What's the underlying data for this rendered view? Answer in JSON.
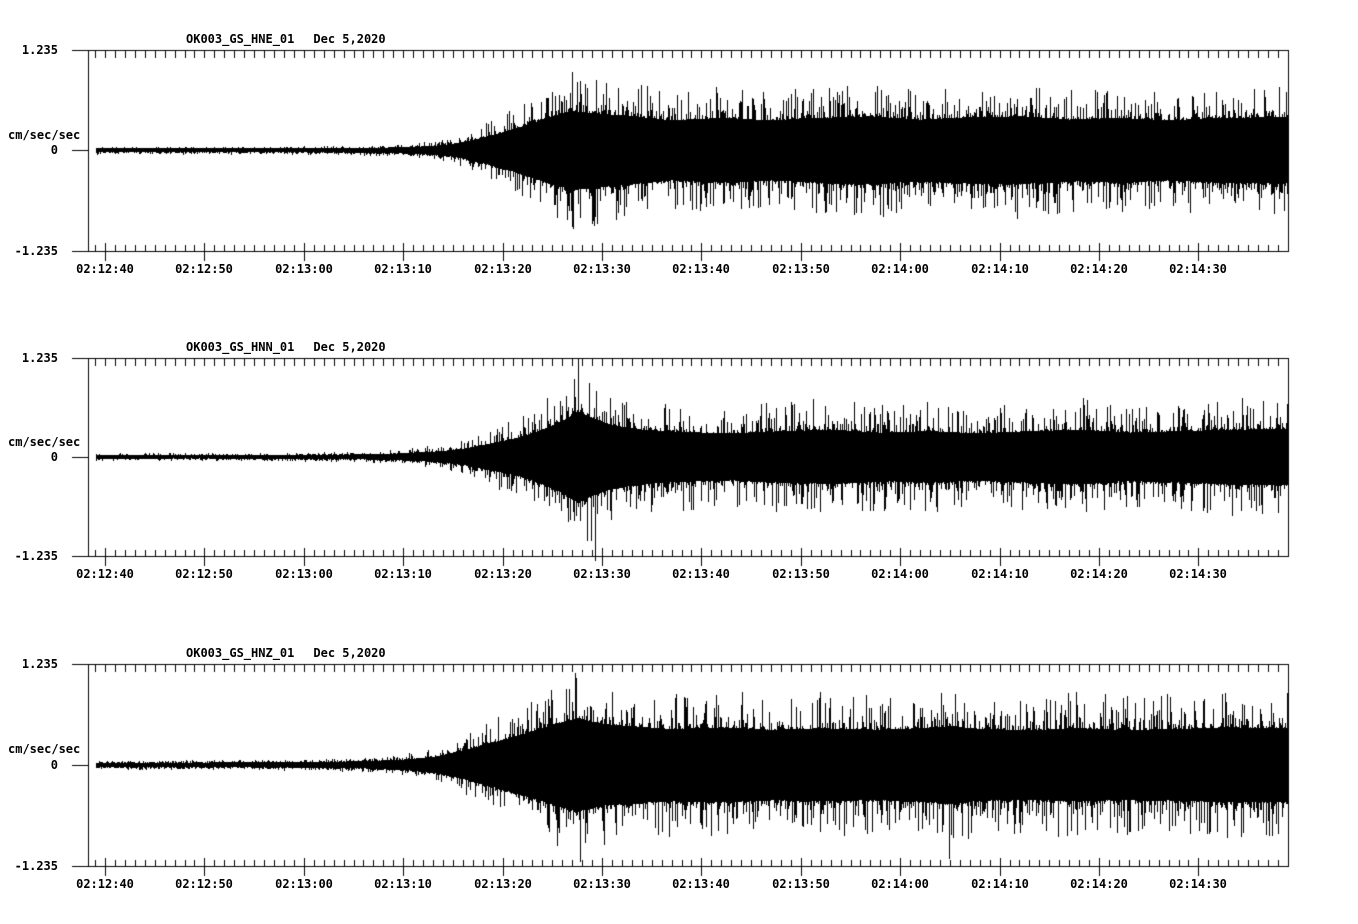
{
  "page": {
    "background": "#ffffff",
    "ink": "#000000"
  },
  "chart_data": [
    {
      "type": "line",
      "kind": "seismogram-trace",
      "title": "OK003_GS_HNE_01",
      "date": "Dec 5,2020",
      "ylabel": "cm/sec/sec",
      "xlabel": "",
      "ylim": [
        -1.235,
        1.235
      ],
      "y_tick_labels": [
        "1.235",
        "0",
        "-1.235"
      ],
      "x_tick_labels": [
        "02:12:40",
        "02:12:50",
        "02:13:00",
        "02:13:10",
        "02:13:20",
        "02:13:30",
        "02:13:40",
        "02:13:50",
        "02:14:00",
        "02:14:10",
        "02:14:20",
        "02:14:30"
      ],
      "x_major_interval_s": 10,
      "x_minor_interval_s": 1,
      "envelope": {
        "t_s": [
          -2,
          10,
          20,
          26,
          30,
          33,
          35,
          37,
          39,
          41,
          43,
          45,
          47,
          50,
          53,
          57,
          62,
          67,
          72,
          77,
          82,
          87,
          92,
          97,
          102,
          107,
          112,
          119
        ],
        "amp": [
          0.05,
          0.05,
          0.05,
          0.06,
          0.08,
          0.11,
          0.16,
          0.26,
          0.38,
          0.52,
          0.68,
          0.84,
          0.97,
          0.9,
          0.84,
          0.74,
          0.8,
          0.74,
          0.8,
          0.84,
          0.76,
          0.82,
          0.84,
          0.76,
          0.8,
          0.74,
          0.8,
          0.82
        ]
      },
      "notable_peaks": [
        {
          "t_s": 47.0,
          "amp": 0.97
        },
        {
          "t_s": 49.2,
          "amp": -0.92
        }
      ]
    },
    {
      "type": "line",
      "kind": "seismogram-trace",
      "title": "OK003_GS_HNN_01",
      "date": "Dec 5,2020",
      "ylabel": "cm/sec/sec",
      "xlabel": "",
      "ylim": [
        -1.235,
        1.235
      ],
      "y_tick_labels": [
        "1.235",
        "0",
        "-1.235"
      ],
      "x_tick_labels": [
        "02:12:40",
        "02:12:50",
        "02:13:00",
        "02:13:10",
        "02:13:20",
        "02:13:30",
        "02:13:40",
        "02:13:50",
        "02:14:00",
        "02:14:10",
        "02:14:20",
        "02:14:30"
      ],
      "x_major_interval_s": 10,
      "x_minor_interval_s": 1,
      "envelope": {
        "t_s": [
          -2,
          10,
          20,
          26,
          30,
          33,
          36,
          39,
          42,
          44,
          46,
          47.5,
          49,
          51,
          54,
          58,
          63,
          68,
          73,
          78,
          83,
          88,
          93,
          98,
          103,
          108,
          113,
          119
        ],
        "amp": [
          0.05,
          0.05,
          0.06,
          0.07,
          0.1,
          0.14,
          0.22,
          0.38,
          0.55,
          0.75,
          0.98,
          1.24,
          1.05,
          0.86,
          0.74,
          0.68,
          0.64,
          0.7,
          0.74,
          0.66,
          0.7,
          0.64,
          0.7,
          0.74,
          0.66,
          0.7,
          0.74,
          0.76
        ]
      },
      "notable_peaks": [
        {
          "t_s": 47.6,
          "amp": 1.24
        },
        {
          "t_s": 49.3,
          "amp": -1.3
        }
      ]
    },
    {
      "type": "line",
      "kind": "seismogram-trace",
      "title": "OK003_GS_HNZ_01",
      "date": "Dec 5,2020",
      "ylabel": "cm/sec/sec",
      "xlabel": "",
      "ylim": [
        -1.235,
        1.235
      ],
      "y_tick_labels": [
        "1.235",
        "0",
        "-1.235"
      ],
      "x_tick_labels": [
        "02:12:40",
        "02:12:50",
        "02:13:00",
        "02:13:10",
        "02:13:20",
        "02:13:30",
        "02:13:40",
        "02:13:50",
        "02:14:00",
        "02:14:10",
        "02:14:20",
        "02:14:30"
      ],
      "x_major_interval_s": 10,
      "x_minor_interval_s": 1,
      "envelope": {
        "t_s": [
          -2,
          10,
          20,
          26,
          30,
          33,
          36,
          39,
          42,
          44,
          46,
          47.5,
          50,
          53,
          57,
          62,
          67,
          72,
          77,
          82,
          85,
          88,
          93,
          98,
          103,
          108,
          113,
          119
        ],
        "amp": [
          0.06,
          0.06,
          0.07,
          0.09,
          0.13,
          0.2,
          0.35,
          0.55,
          0.75,
          0.9,
          1.05,
          1.15,
          1.0,
          0.95,
          0.88,
          0.92,
          0.86,
          0.9,
          0.86,
          0.9,
          0.95,
          0.88,
          0.85,
          0.9,
          0.85,
          0.88,
          0.92,
          0.9
        ]
      },
      "notable_peaks": [
        {
          "t_s": 47.3,
          "amp": 1.13
        },
        {
          "t_s": 47.8,
          "amp": -1.18
        },
        {
          "t_s": 84.9,
          "amp": -1.15
        }
      ]
    }
  ]
}
